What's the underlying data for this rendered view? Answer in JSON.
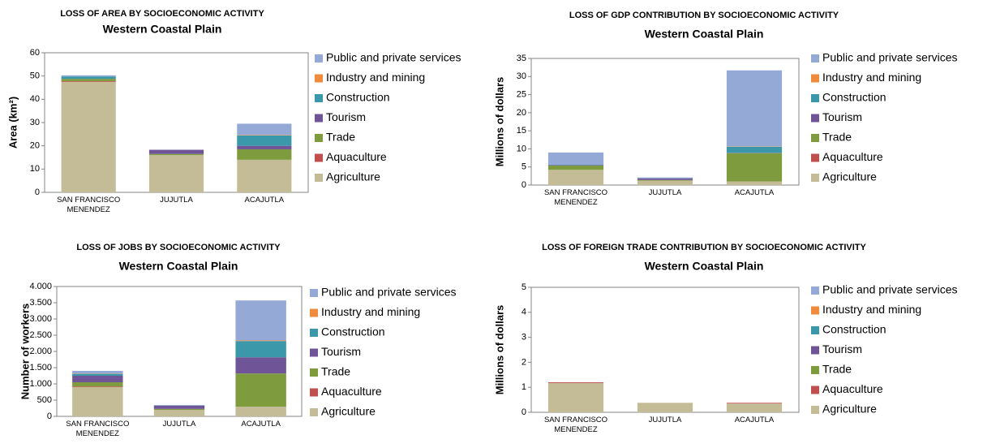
{
  "chart_data": [
    {
      "type": "bar",
      "title": "LOSS OF AREA BY SOCIOECONOMIC ACTIVITY",
      "subtitle": "Western Coastal Plain",
      "y_label": "Area (km²)",
      "categories": [
        "SAN FRANCISCO MENENDEZ",
        "JUJUTLA",
        "ACAJUTLA"
      ],
      "series": [
        {
          "name": "Agriculture",
          "color": "#c4bc96",
          "values": [
            47.5,
            16,
            14
          ]
        },
        {
          "name": "Aquaculture",
          "color": "#c0504d",
          "values": [
            0.3,
            0,
            0
          ]
        },
        {
          "name": "Trade",
          "color": "#7e9c3e",
          "values": [
            1,
            0.5,
            4.5
          ]
        },
        {
          "name": "Tourism",
          "color": "#6f5597",
          "values": [
            0,
            1.8,
            1.5
          ]
        },
        {
          "name": "Construction",
          "color": "#3a98aa",
          "values": [
            1,
            0,
            4.5
          ]
        },
        {
          "name": "Industry and mining",
          "color": "#f08a3c",
          "values": [
            0,
            0,
            0.2
          ]
        },
        {
          "name": "Public and private services",
          "color": "#94a9d5",
          "values": [
            0.5,
            0,
            4.8
          ]
        }
      ],
      "ylim": [
        0,
        60
      ],
      "yticks": [
        0,
        10,
        20,
        30,
        40,
        50,
        60
      ],
      "stacked": true
    },
    {
      "type": "bar",
      "title": "LOSS OF GDP CONTRIBUTION BY SOCIOECONOMIC ACTIVITY",
      "subtitle": "Western Coastal Plain",
      "y_label": "Millions of dollars",
      "categories": [
        "SAN FRANCISCO MENENDEZ",
        "JUJUTLA",
        "ACAJUTLA"
      ],
      "series": [
        {
          "name": "Agriculture",
          "color": "#c4bc96",
          "values": [
            4.2,
            1.2,
            1
          ]
        },
        {
          "name": "Aquaculture",
          "color": "#c0504d",
          "values": [
            0,
            0,
            0
          ]
        },
        {
          "name": "Trade",
          "color": "#7e9c3e",
          "values": [
            1.2,
            0.2,
            7.8
          ]
        },
        {
          "name": "Tourism",
          "color": "#6f5597",
          "values": [
            0.1,
            0.4,
            0.1
          ]
        },
        {
          "name": "Construction",
          "color": "#3a98aa",
          "values": [
            0.1,
            0,
            1.7
          ]
        },
        {
          "name": "Industry and mining",
          "color": "#f08a3c",
          "values": [
            0,
            0,
            0.1
          ]
        },
        {
          "name": "Public and private services",
          "color": "#94a9d5",
          "values": [
            3.4,
            0.3,
            21
          ]
        }
      ],
      "ylim": [
        0,
        35
      ],
      "yticks": [
        0,
        5,
        10,
        15,
        20,
        25,
        30,
        35
      ],
      "stacked": true
    },
    {
      "type": "bar",
      "title": "LOSS OF JOBS BY SOCIOECONOMIC ACTIVITY",
      "subtitle": "Western Coastal Plain",
      "y_label": "Number of workers",
      "categories": [
        "SAN FRANCISCO MENENDEZ",
        "JUJUTLA",
        "ACAJUTLA"
      ],
      "series": [
        {
          "name": "Agriculture",
          "color": "#c4bc96",
          "values": [
            900,
            200,
            300
          ]
        },
        {
          "name": "Aquaculture",
          "color": "#c0504d",
          "values": [
            20,
            0,
            0
          ]
        },
        {
          "name": "Trade",
          "color": "#7e9c3e",
          "values": [
            130,
            30,
            1020
          ]
        },
        {
          "name": "Tourism",
          "color": "#6f5597",
          "values": [
            200,
            100,
            500
          ]
        },
        {
          "name": "Construction",
          "color": "#3a98aa",
          "values": [
            60,
            0,
            500
          ]
        },
        {
          "name": "Industry and mining",
          "color": "#f08a3c",
          "values": [
            10,
            0,
            20
          ]
        },
        {
          "name": "Public and private services",
          "color": "#94a9d5",
          "values": [
            80,
            20,
            1230
          ]
        }
      ],
      "ylim": [
        0,
        4000
      ],
      "yticks": [
        0,
        500,
        {
          "value": 1000,
          "label": "1.000"
        },
        {
          "value": 1500,
          "label": "1.500"
        },
        {
          "value": 2000,
          "label": "2.000"
        },
        {
          "value": 2500,
          "label": "2.500"
        },
        {
          "value": 3000,
          "label": "3.000"
        },
        {
          "value": 3500,
          "label": "3.500"
        },
        {
          "value": 4000,
          "label": "4.000"
        }
      ],
      "stacked": true
    },
    {
      "type": "bar",
      "title": "LOSS OF FOREIGN TRADE CONTRIBUTION BY SOCIOECONOMIC ACTIVITY",
      "subtitle": "Western Coastal Plain",
      "y_label": "Millions of dollars",
      "categories": [
        "SAN FRANCISCO MENENDEZ",
        "JUJUTLA",
        "ACAJUTLA"
      ],
      "series": [
        {
          "name": "Agriculture",
          "color": "#c4bc96",
          "values": [
            1.17,
            0.38,
            0.35
          ]
        },
        {
          "name": "Aquaculture",
          "color": "#c0504d",
          "values": [
            0.03,
            0,
            0.03
          ]
        },
        {
          "name": "Trade",
          "color": "#7e9c3e",
          "values": [
            0,
            0,
            0
          ]
        },
        {
          "name": "Tourism",
          "color": "#6f5597",
          "values": [
            0,
            0,
            0
          ]
        },
        {
          "name": "Construction",
          "color": "#3a98aa",
          "values": [
            0,
            0,
            0
          ]
        },
        {
          "name": "Industry and mining",
          "color": "#f08a3c",
          "values": [
            0,
            0,
            0
          ]
        },
        {
          "name": "Public and private services",
          "color": "#94a9d5",
          "values": [
            0,
            0,
            0
          ]
        }
      ],
      "ylim": [
        0,
        5
      ],
      "yticks": [
        0,
        1,
        2,
        3,
        4,
        5
      ],
      "stacked": true
    }
  ]
}
